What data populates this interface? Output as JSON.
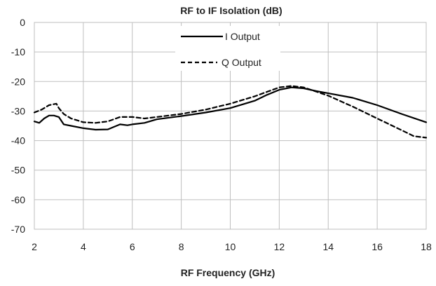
{
  "chart_data": {
    "type": "line",
    "title": "RF to IF Isolation (dB)",
    "xlabel": "RF Frequency (GHz)",
    "ylabel": "",
    "xlim": [
      2,
      18
    ],
    "ylim": [
      -70,
      0
    ],
    "x_ticks": [
      "2",
      "4",
      "6",
      "8",
      "10",
      "12",
      "14",
      "16",
      "18"
    ],
    "y_ticks": [
      "0",
      "-10",
      "-20",
      "-30",
      "-40",
      "-50",
      "-60",
      "-70"
    ],
    "grid": true,
    "legend_position": "top-center",
    "series": [
      {
        "name": "I Output",
        "style": "solid",
        "color": "#000000",
        "x": [
          2,
          2.2,
          2.4,
          2.6,
          2.8,
          3.0,
          3.2,
          3.5,
          4.0,
          4.5,
          5.0,
          5.5,
          5.8,
          6.0,
          6.5,
          7.0,
          8.0,
          9.0,
          10.0,
          11.0,
          11.5,
          12.0,
          12.5,
          13.0,
          13.5,
          14.0,
          15.0,
          16.0,
          17.0,
          18.0
        ],
        "y": [
          -33.5,
          -34.0,
          -32.5,
          -31.5,
          -31.5,
          -32.0,
          -34.5,
          -35.0,
          -35.8,
          -36.3,
          -36.2,
          -34.5,
          -34.8,
          -34.5,
          -34.0,
          -32.8,
          -31.7,
          -30.5,
          -29.0,
          -26.5,
          -24.5,
          -22.8,
          -22.0,
          -22.3,
          -23.2,
          -24.0,
          -25.5,
          -28.0,
          -31.0,
          -33.8
        ]
      },
      {
        "name": "Q Output",
        "style": "dashed",
        "color": "#000000",
        "x": [
          2,
          2.3,
          2.6,
          2.9,
          3.0,
          3.2,
          3.5,
          4.0,
          4.5,
          5.0,
          5.5,
          6.0,
          6.5,
          7.0,
          8.0,
          9.0,
          10.0,
          11.0,
          11.5,
          12.0,
          12.5,
          13.0,
          14.0,
          15.0,
          16.0,
          17.0,
          17.5,
          18.0
        ],
        "y": [
          -30.5,
          -29.5,
          -28.0,
          -27.5,
          -29.0,
          -31.0,
          -32.5,
          -33.8,
          -34.0,
          -33.5,
          -32.0,
          -32.0,
          -32.5,
          -32.0,
          -31.0,
          -29.5,
          -27.5,
          -25.0,
          -23.5,
          -22.0,
          -21.5,
          -22.0,
          -24.8,
          -28.5,
          -32.5,
          -36.5,
          -38.5,
          -39.0
        ]
      }
    ]
  }
}
